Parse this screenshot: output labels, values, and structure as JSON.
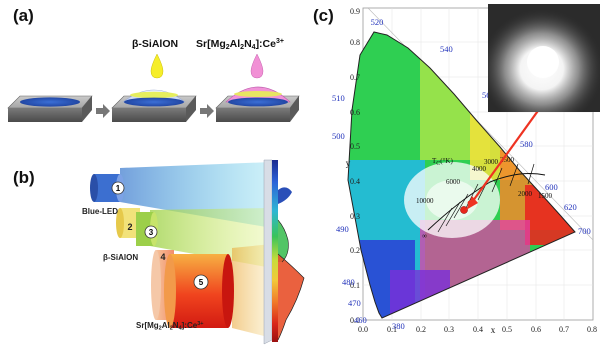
{
  "panel_a": {
    "label": "(a)",
    "drop_1": "β-SiAlON",
    "drop_2": {
      "base": "Sr[Mg",
      "s1": "2",
      "m1": "Al",
      "s2": "2",
      "m2": "N",
      "s3": "4",
      "m3": "]:Ce",
      "sup": "3+"
    }
  },
  "panel_b": {
    "label": "(b)",
    "blue_led": "Blue-LED",
    "sialon": "β-SiAlON",
    "phosphor": {
      "base": "Sr[Mg",
      "s1": "2",
      "m1": "Al",
      "s2": "2",
      "m2": "N",
      "s3": "4",
      "m3": "]:Ce",
      "sup": "3+"
    },
    "numbers": [
      "1",
      "2",
      "3",
      "4",
      "5"
    ]
  },
  "panel_c": {
    "label": "(c)",
    "x_axis": "x",
    "y_axis": "y",
    "x_ticks": [
      "0.0",
      "0.1",
      "0.2",
      "0.3",
      "0.4",
      "0.5",
      "0.6",
      "0.7",
      "0.8"
    ],
    "y_ticks": [
      "0.0",
      "0.1",
      "0.2",
      "0.3",
      "0.4",
      "0.5",
      "0.6",
      "0.7",
      "0.8",
      "0.9"
    ],
    "wavelengths": [
      "520",
      "540",
      "560",
      "580",
      "600",
      "620",
      "700",
      "510",
      "500",
      "490",
      "480",
      "470",
      "460",
      "380"
    ],
    "planckian_label": "T",
    "planckian_sub": "C",
    "planckian_unit": "(°K)",
    "cct": [
      "10000",
      "6000",
      "4000",
      "3000",
      "2500",
      "2000",
      "1500",
      "∞"
    ]
  }
}
